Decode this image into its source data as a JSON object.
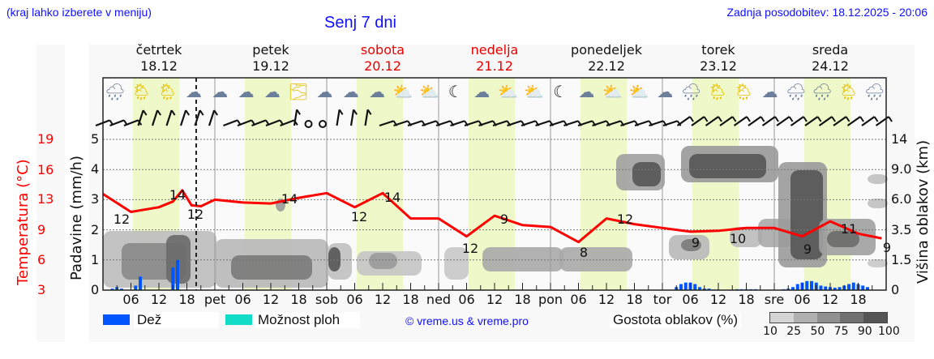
{
  "header": {
    "location_hint": "(kraj lahko izberete v meniju)",
    "title": "Senj 7 dni",
    "last_update": "Zadnja posodobitev: 18.12.2025 - 20:06"
  },
  "days": [
    {
      "name": "četrtek",
      "date": "18.12",
      "weekend": false
    },
    {
      "name": "petek",
      "date": "19.12",
      "weekend": false
    },
    {
      "name": "sobota",
      "date": "20.12",
      "weekend": true
    },
    {
      "name": "nedelja",
      "date": "21.12",
      "weekend": true
    },
    {
      "name": "ponedeljek",
      "date": "22.12",
      "weekend": false
    },
    {
      "name": "torek",
      "date": "23.12",
      "weekend": false
    },
    {
      "name": "sreda",
      "date": "24.12",
      "weekend": false
    }
  ],
  "axes": {
    "left_temp_title": "Temperatura (°C)",
    "left_precip_title": "Padavine (mm/h)",
    "right_title": "Višina oblakov (km)",
    "temp_ticks": [
      "19",
      "16",
      "13",
      "9",
      "6",
      "3"
    ],
    "precip_ticks": [
      "5",
      "4",
      "3",
      "2",
      "1",
      "0"
    ],
    "cloud_ticks": [
      "14",
      "9.0",
      "6.0",
      "3.5",
      "1.5",
      "0"
    ],
    "x_ticks": [
      "06",
      "12",
      "18",
      "pet",
      "06",
      "12",
      "18",
      "sob",
      "06",
      "12",
      "18",
      "ned",
      "06",
      "12",
      "18",
      "pon",
      "06",
      "12",
      "18",
      "tor",
      "06",
      "12",
      "18",
      "sre",
      "06",
      "12",
      "18"
    ]
  },
  "weather_icons": [
    "night-cloud-rain",
    "sun-cloud-rain",
    "sun-cloud-rain",
    "night-cloud",
    "cloud",
    "cloud",
    "cloud",
    "sun-fog",
    "cloud",
    "night-cloud",
    "night-cloud",
    "sun-cloud",
    "sun-cloud",
    "night-clear",
    "night-cloud",
    "sun-cloud",
    "sun-cloud",
    "night-clear",
    "night-cloud",
    "sun-cloud",
    "sun-cloud",
    "cloud",
    "night-cloud-rain",
    "sun-cloud-rain",
    "sun-cloud-rain",
    "cloud",
    "cloud-rain",
    "cloud-rain",
    "sun-cloud-rain",
    "night-cloud-rain"
  ],
  "legend": {
    "rain_label": "Dež",
    "rain_color": "#0055ff",
    "showers_label": "Možnost ploh",
    "showers_color": "#10dcc8",
    "copyright": "© vreme.us & vreme.pro",
    "cloud_density_label": "Gostota oblakov (%)",
    "cloud_density_ticks": [
      "10",
      "25",
      "50",
      "75",
      "90",
      "100"
    ],
    "cloud_density_colors": [
      "#d4d4d4",
      "#b0b0b0",
      "#909090",
      "#707070",
      "#555555"
    ]
  },
  "colors": {
    "temperature_line": "#ff0000",
    "daylight_band": "#eff8c8",
    "title_blue": "#1010ff"
  },
  "chart_data": {
    "type": "line",
    "title": "Senj 7 dni",
    "xlabel": "",
    "ylabel": "Temperatura (°C)",
    "ylim": [
      3,
      19
    ],
    "x_unit": "hours since 18.12 00:00",
    "temperature": {
      "x": [
        0,
        6,
        12,
        15,
        17,
        19,
        21,
        24,
        30,
        36,
        42,
        48,
        54,
        60,
        66,
        72,
        78,
        84,
        90,
        96,
        102,
        108,
        114,
        120,
        126,
        132,
        138,
        144,
        150,
        156,
        162,
        167
      ],
      "y": [
        13.2,
        11.3,
        11.8,
        12.4,
        13.6,
        12.0,
        11.9,
        12.6,
        12.3,
        12.2,
        12.8,
        13.3,
        11.8,
        13.3,
        10.6,
        10.6,
        8.7,
        10.9,
        9.9,
        9.7,
        8.1,
        10.6,
        10.0,
        9.6,
        9.2,
        9.3,
        9.6,
        9.6,
        8.7,
        10.3,
        9.0,
        8.5
      ]
    },
    "temperature_labels": [
      {
        "hour": 3,
        "value": 12
      },
      {
        "hour": 16,
        "value": 14
      },
      {
        "hour": 20,
        "value": 12
      },
      {
        "hour": 38,
        "value": 14
      },
      {
        "hour": 51,
        "value": 12
      },
      {
        "hour": 61,
        "value": 14
      },
      {
        "hour": 75,
        "value": 12
      },
      {
        "hour": 79,
        "value": 9
      },
      {
        "hour": 85,
        "value": 12
      },
      {
        "hour": 103,
        "value": 8
      },
      {
        "hour": 109,
        "value": 12
      },
      {
        "hour": 125,
        "value": 9
      },
      {
        "hour": 131,
        "value": 10
      },
      {
        "hour": 148,
        "value": 9
      },
      {
        "hour": 157,
        "value": 11
      },
      {
        "hour": 167,
        "value": 9
      }
    ],
    "precipitation_mm_h": {
      "x": [
        2,
        3,
        4,
        7,
        8,
        15,
        16,
        123,
        124,
        125,
        126,
        127,
        128,
        129,
        130,
        131,
        132,
        136,
        137,
        138,
        139,
        140,
        146,
        147,
        148,
        149,
        150,
        151,
        152,
        153,
        154,
        155,
        156,
        157,
        158,
        159,
        160,
        161,
        162,
        163,
        164
      ],
      "y": [
        0.05,
        0.1,
        0.05,
        0.15,
        0.45,
        0.75,
        1.0,
        0.1,
        0.2,
        0.25,
        0.25,
        0.2,
        0.1,
        0.05,
        0.05,
        0.02,
        0.02,
        0.03,
        0.03,
        0.03,
        0.03,
        0.03,
        0.03,
        0.05,
        0.1,
        0.2,
        0.25,
        0.3,
        0.3,
        0.25,
        0.15,
        0.12,
        0.1,
        0.08,
        0.1,
        0.15,
        0.2,
        0.25,
        0.2,
        0.15,
        0.1
      ]
    },
    "series": [
      {
        "name": "Temperatura (°C)",
        "axis": "left-red"
      },
      {
        "name": "Dež",
        "axis": "left-precip"
      },
      {
        "name": "Gostota oblakov (%)",
        "axis": "right-cloud-height"
      }
    ],
    "precip_ylim": [
      0,
      5
    ],
    "cloud_height_ticks_km": [
      0,
      1.5,
      3.5,
      6.0,
      9.0,
      14
    ],
    "now_marker_hour": 20,
    "grid": true,
    "legend_position": "bottom"
  }
}
